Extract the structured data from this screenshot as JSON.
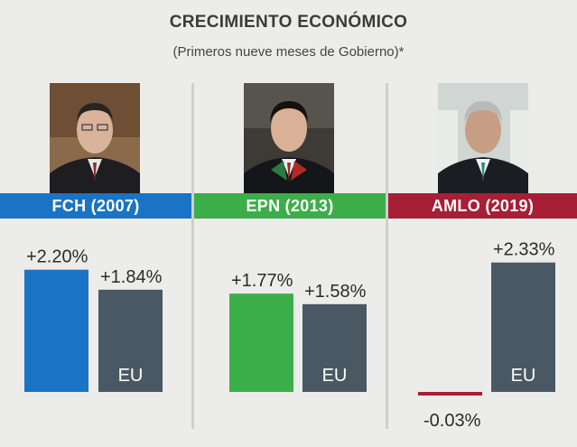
{
  "header": {
    "title": "CRECIMIENTO ECONÓMICO",
    "subtitle": "(Primeros nueve meses de Gobierno)*"
  },
  "colors": {
    "fch": "#1a73c4",
    "epn": "#3cae49",
    "amlo": "#a61f36",
    "eu": "#4a5864"
  },
  "chart_data": {
    "type": "bar",
    "title": "CRECIMIENTO ECONÓMICO",
    "subtitle": "(Primeros nueve meses de Gobierno)*",
    "unit": "%",
    "groups": [
      {
        "label": "FCH (2007)",
        "bars": [
          {
            "label": "",
            "value": 2.2,
            "text": "+2.20%",
            "color": "#1a73c4"
          },
          {
            "label": "EU",
            "value": 1.84,
            "text": "+1.84%",
            "color": "#4a5864"
          }
        ]
      },
      {
        "label": "EPN (2013)",
        "bars": [
          {
            "label": "",
            "value": 1.77,
            "text": "+1.77%",
            "color": "#3cae49"
          },
          {
            "label": "EU",
            "value": 1.58,
            "text": "+1.58%",
            "color": "#4a5864"
          }
        ]
      },
      {
        "label": "AMLO (2019)",
        "bars": [
          {
            "label": "",
            "value": -0.03,
            "text": "-0.03%",
            "color": "#a61f36"
          },
          {
            "label": "EU",
            "value": 2.33,
            "text": "+2.33%",
            "color": "#4a5864"
          }
        ]
      }
    ]
  }
}
